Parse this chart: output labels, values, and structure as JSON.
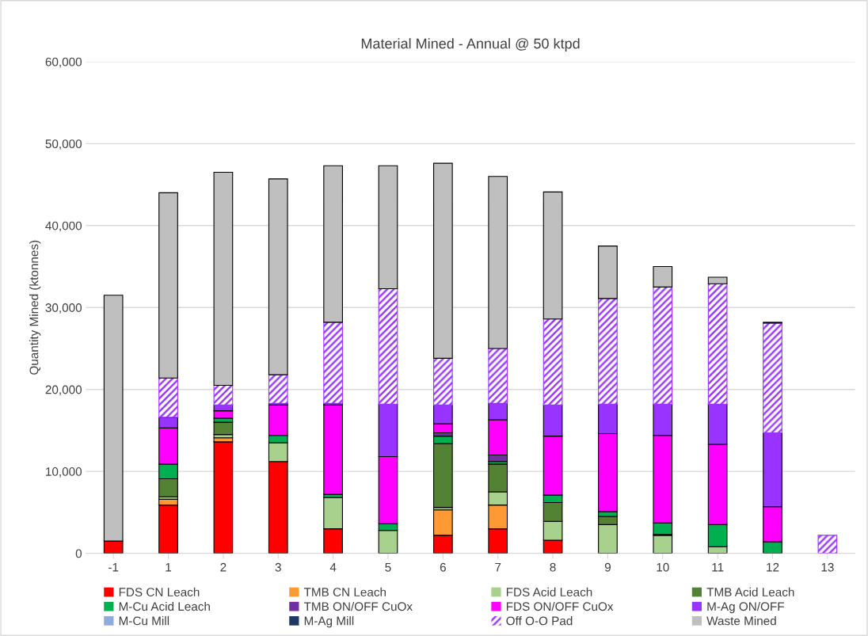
{
  "chart_data": {
    "type": "bar",
    "title": "Material Mined - Annual @ 50 ktpd",
    "ylabel": "Quantity Mined (ktonnes)",
    "stacked": true,
    "categories": [
      "-1",
      "1",
      "2",
      "3",
      "4",
      "5",
      "6",
      "7",
      "8",
      "9",
      "10",
      "11",
      "12",
      "13"
    ],
    "series": [
      {
        "name": "FDS CN Leach",
        "color": "#ff0000",
        "values": [
          1500,
          5900,
          13600,
          11200,
          3000,
          null,
          2200,
          3000,
          1600,
          null,
          null,
          null,
          null,
          null
        ]
      },
      {
        "name": "TMB CN Leach",
        "color": "#ff9933",
        "values": [
          null,
          700,
          500,
          null,
          null,
          null,
          3100,
          2900,
          null,
          null,
          null,
          null,
          null,
          null
        ]
      },
      {
        "name": "FDS Acid Leach",
        "color": "#a9d18e",
        "values": [
          null,
          300,
          400,
          2300,
          3800,
          2800,
          300,
          1600,
          2300,
          3500,
          2200,
          800,
          null,
          null
        ]
      },
      {
        "name": "TMB Acid Leach",
        "color": "#548235",
        "values": [
          null,
          2200,
          1500,
          null,
          null,
          null,
          7800,
          3400,
          2300,
          1000,
          100,
          null,
          null,
          null
        ]
      },
      {
        "name": "M-Cu Acid Leach",
        "color": "#00b050",
        "values": [
          null,
          1800,
          500,
          900,
          400,
          800,
          900,
          300,
          900,
          600,
          1400,
          2700,
          1400,
          null
        ]
      },
      {
        "name": "TMB ON/OFF CuOx",
        "color": "#7030a0",
        "values": [
          null,
          null,
          null,
          null,
          null,
          null,
          400,
          800,
          null,
          null,
          null,
          null,
          null,
          null
        ]
      },
      {
        "name": "FDS ON/OFF CuOx",
        "color": "#ff00ff",
        "values": [
          null,
          4400,
          900,
          3700,
          10900,
          8200,
          1100,
          4300,
          7200,
          9500,
          10700,
          9800,
          4300,
          null
        ]
      },
      {
        "name": "M-Ag ON/OFF",
        "color": "#9933ff",
        "values": [
          null,
          1300,
          700,
          200,
          200,
          6400,
          2300,
          2000,
          3800,
          3600,
          3800,
          4900,
          9000,
          null
        ]
      },
      {
        "name": "M-Cu Mill",
        "color": "#8faadc",
        "values": [
          null,
          null,
          null,
          null,
          null,
          null,
          null,
          null,
          null,
          null,
          null,
          null,
          null,
          null
        ]
      },
      {
        "name": "M-Ag Mill",
        "color": "#203864",
        "values": [
          null,
          null,
          null,
          null,
          null,
          null,
          null,
          null,
          null,
          null,
          null,
          null,
          null,
          null
        ]
      },
      {
        "name": "Off O-O Pad",
        "color": "#9933ff",
        "values": [
          null,
          4800,
          2400,
          3500,
          9900,
          14100,
          5700,
          6700,
          10500,
          12900,
          14300,
          14700,
          13400,
          2200
        ]
      },
      {
        "name": "Waste Mined",
        "color": "#bfbfbf",
        "values": [
          30000,
          22600,
          26000,
          23900,
          19100,
          15000,
          23800,
          21000,
          15500,
          6400,
          2500,
          800,
          100,
          null
        ]
      }
    ],
    "ylim": [
      0,
      60000
    ],
    "yticks": [
      {
        "value": 0,
        "label": "0"
      },
      {
        "value": 10000,
        "label": "10,000"
      },
      {
        "value": 20000,
        "label": "20,000"
      },
      {
        "value": 30000,
        "label": "30,000"
      },
      {
        "value": 40000,
        "label": "40,000"
      },
      {
        "value": 50000,
        "label": "50,000"
      },
      {
        "value": 60000,
        "label": "60,000"
      }
    ],
    "grid": "y",
    "legend": "bottom"
  }
}
